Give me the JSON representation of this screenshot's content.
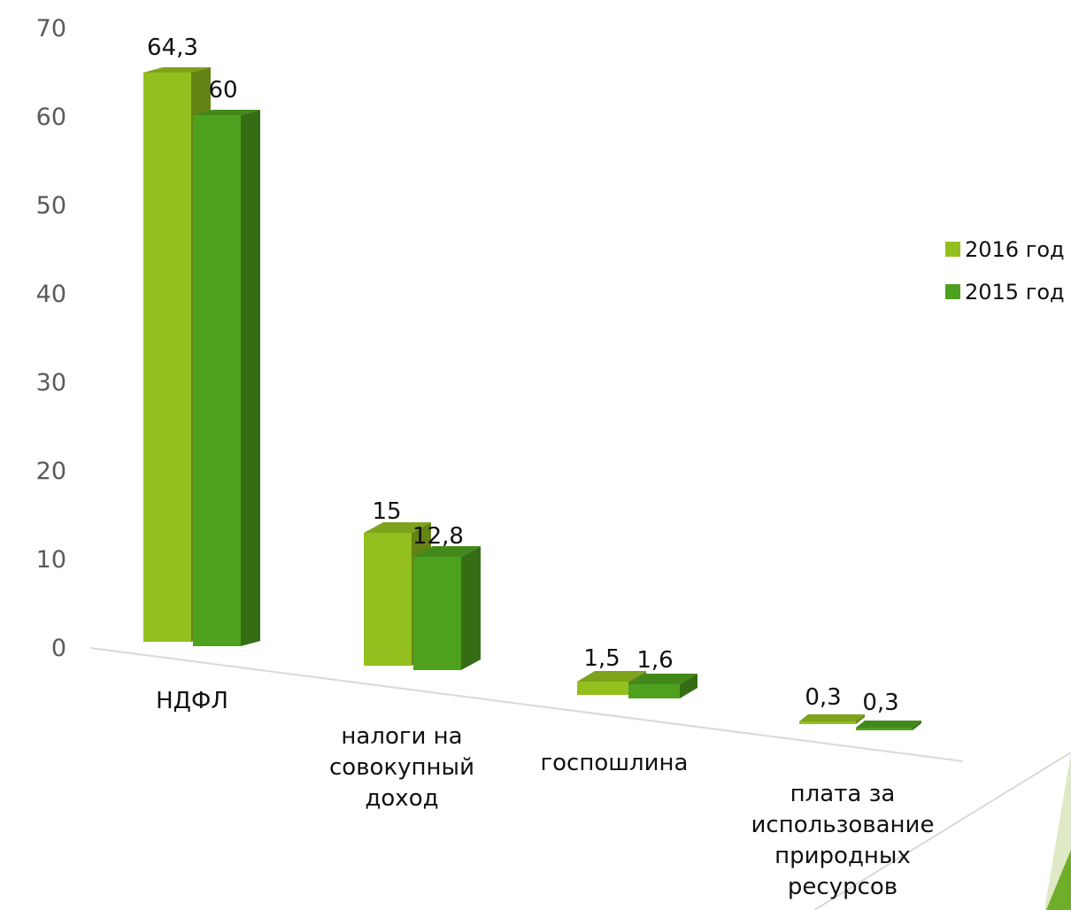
{
  "chart_data": {
    "type": "bar",
    "categories": [
      [
        "НДФЛ"
      ],
      [
        "налоги на",
        "совокупный",
        "доход"
      ],
      [
        "госпошлина"
      ],
      [
        "плата за",
        "использование",
        "природных",
        "ресурсов"
      ]
    ],
    "series": [
      {
        "name": "2016 год",
        "values": [
          64.3,
          15,
          1.5,
          0.3
        ],
        "labels": [
          "64,3",
          "15",
          "1,5",
          "0,3"
        ],
        "color": "#93c01f"
      },
      {
        "name": "2015 год",
        "values": [
          60,
          12.8,
          1.6,
          0.3
        ],
        "labels": [
          "60",
          "12,8",
          "1,6",
          "0,3"
        ],
        "color": "#4ea11f"
      }
    ],
    "yticks": [
      "0",
      "10",
      "20",
      "30",
      "40",
      "50",
      "60",
      "70"
    ],
    "ylim": [
      0,
      70
    ],
    "legend_position": "right",
    "grid": false,
    "style": "3d-perspective"
  }
}
